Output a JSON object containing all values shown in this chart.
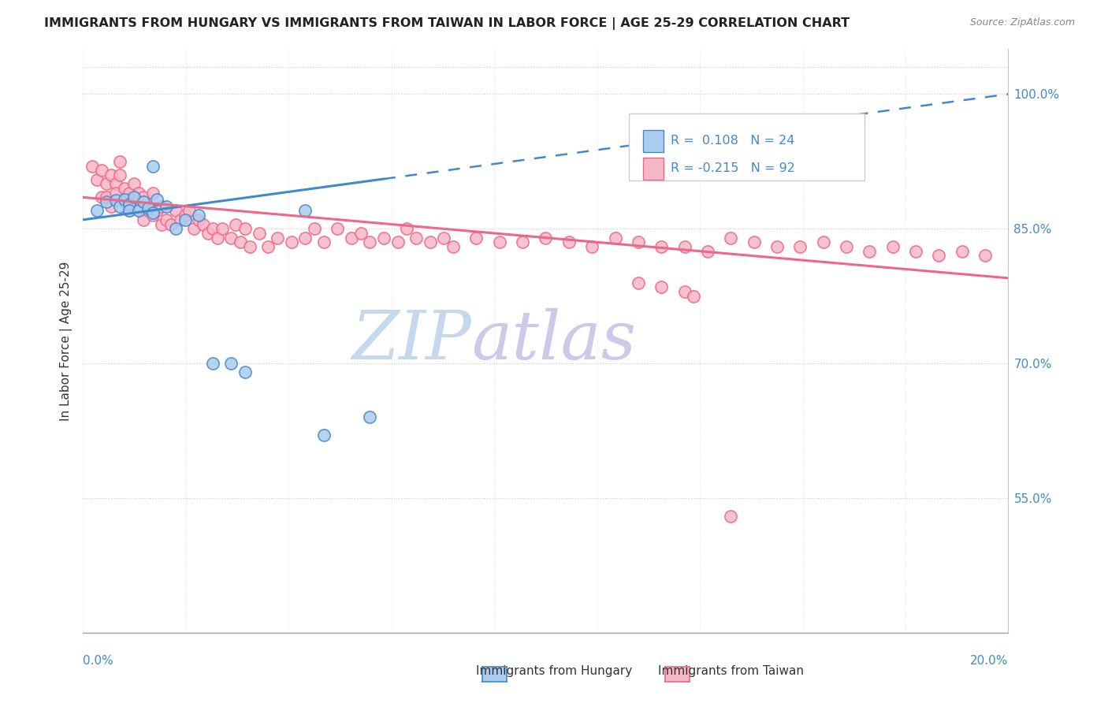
{
  "title": "IMMIGRANTS FROM HUNGARY VS IMMIGRANTS FROM TAIWAN IN LABOR FORCE | AGE 25-29 CORRELATION CHART",
  "source": "Source: ZipAtlas.com",
  "ylabel": "In Labor Force | Age 25-29",
  "right_yticks": [
    55.0,
    70.0,
    85.0,
    100.0
  ],
  "legend_hungary": "Immigrants from Hungary",
  "legend_taiwan": "Immigrants from Taiwan",
  "hungary_R": 0.108,
  "hungary_N": 24,
  "taiwan_R": -0.215,
  "taiwan_N": 92,
  "hungary_color": "#aaccee",
  "taiwan_color": "#f5b8c8",
  "trend_hungary_color": "#4488cc",
  "trend_taiwan_color": "#ee6688",
  "watermark_zip": "ZIP",
  "watermark_atlas": "atlas",
  "watermark_color_zip": "#c5d8ee",
  "watermark_color_atlas": "#d0c8e8",
  "xmin": 0.0,
  "xmax": 20.0,
  "ymin": 40.0,
  "ymax": 105.0,
  "hungary_x": [
    0.3,
    0.5,
    0.7,
    0.8,
    0.9,
    1.0,
    1.0,
    1.1,
    1.2,
    1.3,
    1.4,
    1.5,
    1.5,
    1.6,
    1.8,
    2.0,
    2.2,
    2.5,
    2.8,
    3.2,
    3.5,
    4.8,
    5.2,
    6.2
  ],
  "hungary_y": [
    87.0,
    88.0,
    88.2,
    87.5,
    88.3,
    87.7,
    87.0,
    88.5,
    87.0,
    88.0,
    87.3,
    92.0,
    86.8,
    88.3,
    87.5,
    85.0,
    86.0,
    86.5,
    70.0,
    70.0,
    69.0,
    87.0,
    62.0,
    64.0
  ],
  "taiwan_x": [
    0.2,
    0.3,
    0.4,
    0.4,
    0.5,
    0.5,
    0.6,
    0.6,
    0.7,
    0.7,
    0.8,
    0.8,
    0.9,
    0.9,
    1.0,
    1.0,
    1.1,
    1.1,
    1.2,
    1.2,
    1.3,
    1.3,
    1.4,
    1.5,
    1.5,
    1.6,
    1.7,
    1.7,
    1.8,
    1.9,
    2.0,
    2.1,
    2.2,
    2.3,
    2.4,
    2.5,
    2.6,
    2.7,
    2.8,
    2.9,
    3.0,
    3.2,
    3.3,
    3.4,
    3.5,
    3.6,
    3.8,
    4.0,
    4.2,
    4.5,
    4.8,
    5.0,
    5.2,
    5.5,
    5.8,
    6.0,
    6.2,
    6.5,
    6.8,
    7.0,
    7.2,
    7.5,
    7.8,
    8.0,
    8.5,
    9.0,
    9.5,
    10.0,
    10.5,
    11.0,
    11.5,
    12.0,
    12.5,
    13.0,
    13.5,
    14.0,
    14.5,
    15.0,
    15.5,
    16.0,
    16.5,
    17.0,
    17.5,
    18.0,
    18.5,
    19.0,
    19.5,
    12.0,
    12.5,
    13.0,
    13.2,
    14.0
  ],
  "taiwan_y": [
    92.0,
    90.5,
    91.5,
    88.5,
    90.0,
    88.5,
    91.0,
    87.5,
    90.0,
    89.0,
    92.5,
    91.0,
    89.5,
    88.0,
    89.0,
    87.0,
    90.0,
    87.5,
    89.0,
    87.0,
    88.5,
    86.0,
    87.0,
    89.0,
    86.5,
    87.0,
    85.5,
    87.5,
    86.0,
    85.5,
    87.0,
    86.0,
    86.5,
    87.0,
    85.0,
    86.0,
    85.5,
    84.5,
    85.0,
    84.0,
    85.0,
    84.0,
    85.5,
    83.5,
    85.0,
    83.0,
    84.5,
    83.0,
    84.0,
    83.5,
    84.0,
    85.0,
    83.5,
    85.0,
    84.0,
    84.5,
    83.5,
    84.0,
    83.5,
    85.0,
    84.0,
    83.5,
    84.0,
    83.0,
    84.0,
    83.5,
    83.5,
    84.0,
    83.5,
    83.0,
    84.0,
    83.5,
    83.0,
    83.0,
    82.5,
    84.0,
    83.5,
    83.0,
    83.0,
    83.5,
    83.0,
    82.5,
    83.0,
    82.5,
    82.0,
    82.5,
    82.0,
    79.0,
    78.5,
    78.0,
    77.5,
    53.0
  ],
  "hungary_trend_x0": 0.0,
  "hungary_trend_y0": 86.0,
  "hungary_trend_x1": 20.0,
  "hungary_trend_y1": 100.0,
  "hungary_solid_end_x": 6.5,
  "taiwan_trend_x0": 0.0,
  "taiwan_trend_y0": 88.5,
  "taiwan_trend_x1": 20.0,
  "taiwan_trend_y1": 79.5
}
